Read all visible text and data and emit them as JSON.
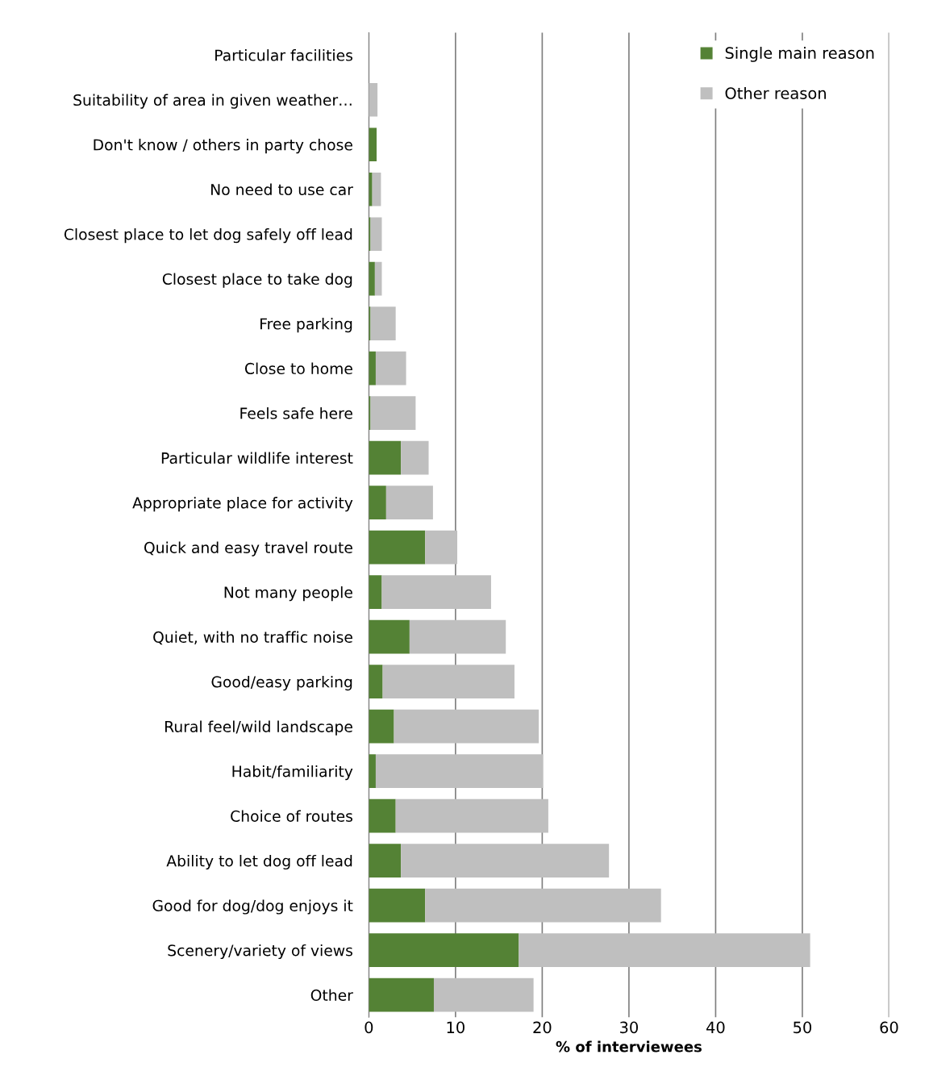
{
  "chart_data": {
    "type": "bar",
    "orientation": "horizontal",
    "stacked": true,
    "xlabel": "% of interviewees",
    "categories": [
      "Particular facilities",
      "Suitability of area in given weather…",
      "Don't know / others in party chose",
      "No need to use car",
      "Closest place to let dog safely off lead",
      "Closest place to take dog",
      "Free parking",
      "Close to home",
      "Feels safe here",
      "Particular wildlife interest",
      "Appropriate place for activity",
      "Quick and easy travel route",
      "Not many people",
      "Quiet, with no traffic noise",
      "Good/easy parking",
      "Rural feel/wild landscape",
      "Habit/familiarity",
      "Choice of routes",
      "Ability to let dog off lead",
      "Good for dog/dog enjoys it",
      "Scenery/variety of views",
      "Other"
    ],
    "series": [
      {
        "name": "Single main reason",
        "color": "#548235",
        "values": [
          0,
          0,
          0.9,
          0.4,
          0.2,
          0.7,
          0.2,
          0.8,
          0.2,
          3.7,
          2.0,
          6.5,
          1.5,
          4.7,
          1.6,
          2.9,
          0.8,
          3.1,
          3.7,
          6.5,
          17.3,
          7.5
        ]
      },
      {
        "name": "Other reason",
        "color": "#bfbfbf",
        "values": [
          null,
          1.0,
          0,
          1.0,
          1.3,
          0.8,
          2.9,
          3.5,
          5.2,
          3.2,
          5.4,
          3.7,
          12.6,
          11.1,
          15.2,
          16.7,
          19.3,
          17.6,
          24.0,
          27.2,
          33.6,
          11.5
        ]
      }
    ],
    "xlim": [
      0,
      60
    ],
    "xticks": [
      0,
      10,
      20,
      30,
      40,
      50,
      60
    ],
    "grid": "x",
    "legend": "top right"
  }
}
